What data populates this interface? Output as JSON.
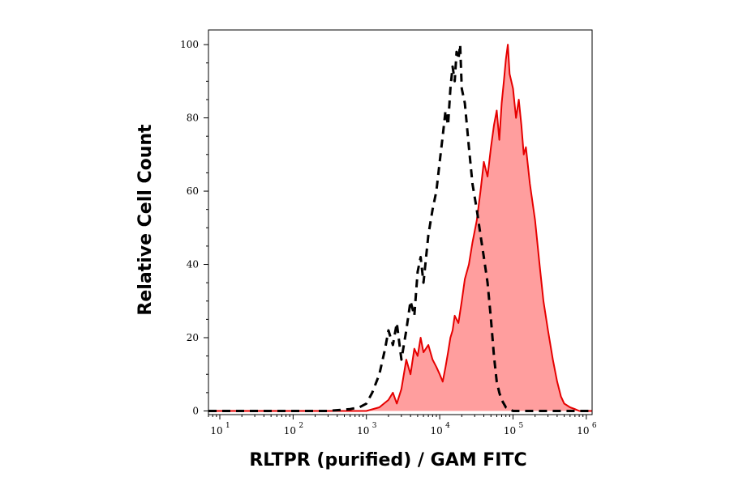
{
  "chart_data": {
    "type": "area",
    "xlabel": "RLTPR (purified) / GAM FITC",
    "ylabel": "Relative Cell Count",
    "x_scale": "log",
    "xlim": [
      7,
      1200000
    ],
    "ylim": [
      -1,
      104
    ],
    "grid": false,
    "x_ticks": [
      {
        "base": "10",
        "exp": "1",
        "value": 10
      },
      {
        "base": "10",
        "exp": "2",
        "value": 100
      },
      {
        "base": "10",
        "exp": "3",
        "value": 1000
      },
      {
        "base": "10",
        "exp": "4",
        "value": 10000
      },
      {
        "base": "10",
        "exp": "5",
        "value": 100000
      },
      {
        "base": "10",
        "exp": "6",
        "value": 1000000
      }
    ],
    "y_ticks": [
      {
        "label": "0",
        "value": 0
      },
      {
        "label": "20",
        "value": 20
      },
      {
        "label": "40",
        "value": 40
      },
      {
        "label": "60",
        "value": 60
      },
      {
        "label": "80",
        "value": 80
      },
      {
        "label": "100",
        "value": 100
      }
    ],
    "series": [
      {
        "style": "dashed",
        "color": "#000000",
        "x": [
          7,
          300,
          600,
          800,
          1000,
          1200,
          1500,
          1800,
          2000,
          2300,
          2600,
          3000,
          3500,
          4000,
          4500,
          5000,
          5500,
          6000,
          7000,
          8000,
          9000,
          10000,
          11000,
          12000,
          13000,
          14000,
          15000,
          16000,
          17000,
          18000,
          19000,
          20000,
          22000,
          25000,
          28000,
          32000,
          36000,
          40000,
          45000,
          50000,
          55000,
          60000,
          65000,
          70000,
          80000,
          90000,
          100000,
          110000,
          120000,
          1200000
        ],
        "y": [
          0,
          0,
          0.5,
          1,
          2,
          5,
          10,
          17,
          22,
          18,
          24,
          14,
          22,
          30,
          26,
          38,
          42,
          35,
          48,
          55,
          60,
          68,
          75,
          82,
          78,
          88,
          94,
          90,
          98,
          96,
          100,
          88,
          84,
          72,
          62,
          55,
          48,
          42,
          35,
          25,
          15,
          8,
          5,
          3,
          1,
          0.5,
          0,
          0,
          0,
          0
        ]
      },
      {
        "style": "filled",
        "color": "#e60000",
        "fill": "#ff9e9e",
        "x": [
          7,
          1000,
          1500,
          2000,
          2300,
          2600,
          3000,
          3500,
          4000,
          4500,
          5000,
          5500,
          6000,
          7000,
          8000,
          9000,
          10000,
          11000,
          12000,
          13000,
          14000,
          15000,
          16000,
          18000,
          20000,
          22000,
          25000,
          28000,
          32000,
          36000,
          40000,
          45000,
          50000,
          55000,
          60000,
          65000,
          70000,
          75000,
          80000,
          85000,
          90000,
          100000,
          110000,
          120000,
          130000,
          140000,
          150000,
          170000,
          200000,
          230000,
          260000,
          300000,
          350000,
          400000,
          450000,
          500000,
          600000,
          700000,
          800000,
          900000,
          1200000
        ],
        "y": [
          0,
          0,
          1,
          3,
          5,
          2,
          6,
          14,
          10,
          17,
          15,
          20,
          16,
          18,
          14,
          12,
          10,
          8,
          12,
          16,
          20,
          22,
          26,
          24,
          30,
          36,
          40,
          46,
          52,
          60,
          68,
          64,
          72,
          78,
          82,
          74,
          84,
          90,
          96,
          100,
          92,
          88,
          80,
          85,
          78,
          70,
          72,
          62,
          52,
          40,
          30,
          22,
          14,
          8,
          4,
          2,
          1,
          0.5,
          0,
          0,
          0
        ]
      }
    ]
  }
}
